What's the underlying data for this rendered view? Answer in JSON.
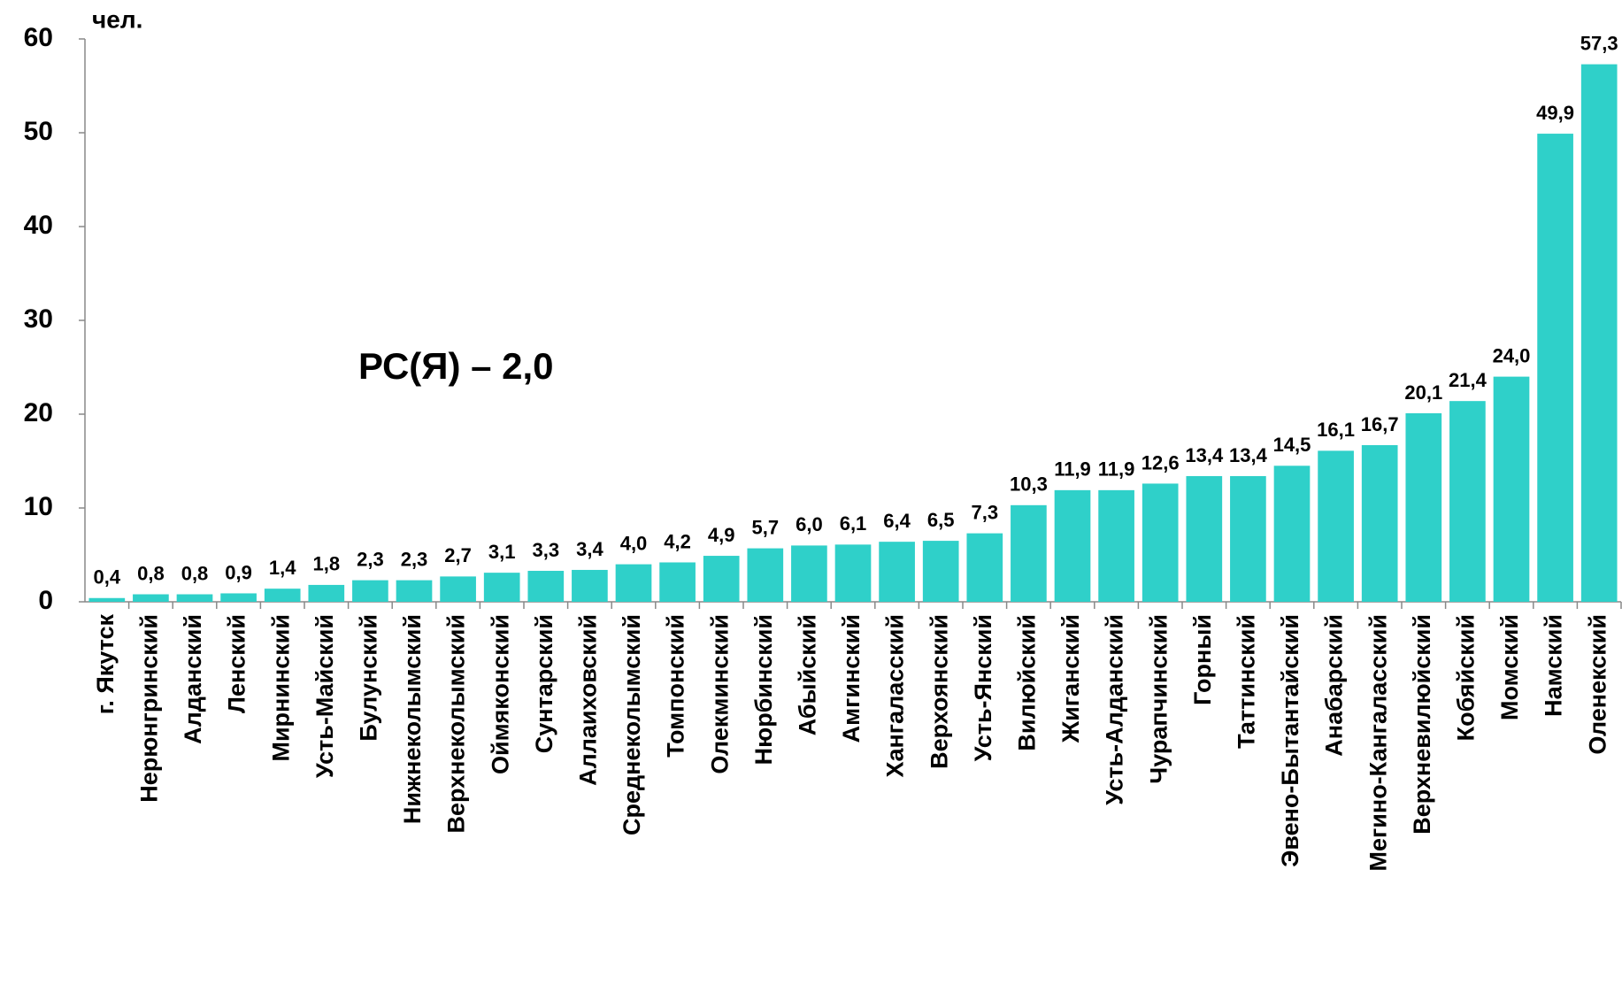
{
  "chart_data": {
    "type": "bar",
    "y_unit": "чел.",
    "annotation": "РС(Я) – 2,0",
    "categories": [
      "г. Якутск",
      "Нерюнгринский",
      "Алданский",
      "Ленский",
      "Мирнинский",
      "Усть-Майский",
      "Булунский",
      "Нижнеколымский",
      "Верхнеколымский",
      "Оймяконский",
      "Сунтарский",
      "Аллаиховский",
      "Среднеколымский",
      "Томпонский",
      "Олекминский",
      "Нюрбинский",
      "Абыйский",
      "Амгинский",
      "Хангаласский",
      "Верхоянский",
      "Усть-Янский",
      "Вилюйский",
      "Жиганский",
      "Усть-Алданский",
      "Чурапчинский",
      "Горный",
      "Таттинский",
      "Эвено-Бытантайский",
      "Анабарский",
      "Мегино-Кангаласский",
      "Верхневилюйский",
      "Кобяйский",
      "Момский",
      "Намский",
      "Оленекский"
    ],
    "values": [
      0.4,
      0.8,
      0.8,
      0.9,
      1.4,
      1.8,
      2.3,
      2.3,
      2.7,
      3.1,
      3.3,
      3.4,
      4.0,
      4.2,
      4.9,
      5.7,
      6.0,
      6.1,
      6.4,
      6.5,
      7.3,
      10.3,
      11.9,
      11.9,
      12.6,
      13.4,
      13.4,
      14.5,
      16.1,
      16.7,
      20.1,
      21.4,
      24.0,
      49.9,
      57.3
    ],
    "value_labels": [
      "0,4",
      "0,8",
      "0,8",
      "0,9",
      "1,4",
      "1,8",
      "2,3",
      "2,3",
      "2,7",
      "3,1",
      "3,3",
      "3,4",
      "4,0",
      "4,2",
      "4,9",
      "5,7",
      "6,0",
      "6,1",
      "6,4",
      "6,5",
      "7,3",
      "10,3",
      "11,9",
      "11,9",
      "12,6",
      "13,4",
      "13,4",
      "14,5",
      "16,1",
      "16,7",
      "20,1",
      "21,4",
      "24,0",
      "49,9",
      "57,3"
    ],
    "color": "#2fd0c9",
    "ylim": [
      0,
      60
    ],
    "yticks": [
      0,
      10,
      20,
      30,
      40,
      50,
      60
    ],
    "grid": false
  }
}
